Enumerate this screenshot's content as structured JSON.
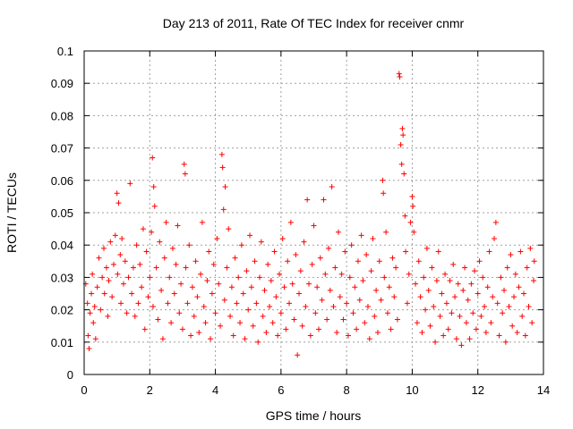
{
  "chart_data": {
    "type": "scatter",
    "title": "Day 213 of 2011, Rate Of TEC Index for receiver cnmr",
    "xlabel": "GPS time / hours",
    "ylabel": "ROTI / TECUs",
    "xlim": [
      0,
      14
    ],
    "ylim": [
      0,
      0.1
    ],
    "x_ticks": [
      0,
      2,
      4,
      6,
      8,
      10,
      12,
      14
    ],
    "x_tick_labels": [
      "0",
      "2",
      "4",
      "6",
      "8",
      "10",
      "12",
      "14"
    ],
    "y_ticks": [
      0,
      0.01,
      0.02,
      0.03,
      0.04,
      0.05,
      0.06,
      0.07,
      0.08,
      0.09,
      0.1
    ],
    "y_tick_labels": [
      "0",
      "0.01",
      "0.02",
      "0.03",
      "0.04",
      "0.05",
      "0.06",
      "0.07",
      "0.08",
      "0.09",
      "0.1"
    ],
    "grid": true,
    "marker": "+",
    "marker_color": "#ff0000",
    "series": [
      {
        "name": "ROTI",
        "points": [
          [
            0.05,
            0.028
          ],
          [
            0.1,
            0.022
          ],
          [
            0.12,
            0.012
          ],
          [
            0.15,
            0.008
          ],
          [
            0.18,
            0.019
          ],
          [
            0.22,
            0.025
          ],
          [
            0.25,
            0.031
          ],
          [
            0.28,
            0.016
          ],
          [
            0.32,
            0.021
          ],
          [
            0.35,
            0.011
          ],
          [
            0.4,
            0.027
          ],
          [
            0.45,
            0.036
          ],
          [
            0.5,
            0.02
          ],
          [
            0.55,
            0.03
          ],
          [
            0.6,
            0.039
          ],
          [
            0.62,
            0.025
          ],
          [
            0.68,
            0.033
          ],
          [
            0.72,
            0.018
          ],
          [
            0.75,
            0.029
          ],
          [
            0.8,
            0.041
          ],
          [
            0.85,
            0.024
          ],
          [
            0.9,
            0.034
          ],
          [
            0.95,
            0.043
          ],
          [
            1.0,
            0.056
          ],
          [
            1.02,
            0.031
          ],
          [
            1.05,
            0.053
          ],
          [
            1.1,
            0.037
          ],
          [
            1.12,
            0.022
          ],
          [
            1.15,
            0.042
          ],
          [
            1.2,
            0.028
          ],
          [
            1.25,
            0.035
          ],
          [
            1.3,
            0.019
          ],
          [
            1.35,
            0.03
          ],
          [
            1.4,
            0.059
          ],
          [
            1.45,
            0.025
          ],
          [
            1.5,
            0.033
          ],
          [
            1.55,
            0.018
          ],
          [
            1.6,
            0.04
          ],
          [
            1.65,
            0.022
          ],
          [
            1.7,
            0.034
          ],
          [
            1.75,
            0.027
          ],
          [
            1.8,
            0.045
          ],
          [
            1.85,
            0.014
          ],
          [
            1.9,
            0.038
          ],
          [
            1.95,
            0.024
          ],
          [
            2.0,
            0.03
          ],
          [
            2.05,
            0.044
          ],
          [
            2.08,
            0.067
          ],
          [
            2.1,
            0.021
          ],
          [
            2.12,
            0.058
          ],
          [
            2.15,
            0.052
          ],
          [
            2.2,
            0.033
          ],
          [
            2.25,
            0.017
          ],
          [
            2.3,
            0.041
          ],
          [
            2.35,
            0.026
          ],
          [
            2.4,
            0.011
          ],
          [
            2.45,
            0.036
          ],
          [
            2.5,
            0.047
          ],
          [
            2.55,
            0.022
          ],
          [
            2.6,
            0.03
          ],
          [
            2.65,
            0.016
          ],
          [
            2.7,
            0.039
          ],
          [
            2.75,
            0.025
          ],
          [
            2.8,
            0.034
          ],
          [
            2.85,
            0.046
          ],
          [
            2.9,
            0.019
          ],
          [
            2.95,
            0.028
          ],
          [
            3.0,
            0.014
          ],
          [
            3.05,
            0.065
          ],
          [
            3.08,
            0.062
          ],
          [
            3.1,
            0.033
          ],
          [
            3.15,
            0.022
          ],
          [
            3.2,
            0.04
          ],
          [
            3.25,
            0.012
          ],
          [
            3.3,
            0.027
          ],
          [
            3.35,
            0.018
          ],
          [
            3.4,
            0.035
          ],
          [
            3.45,
            0.024
          ],
          [
            3.5,
            0.013
          ],
          [
            3.55,
            0.031
          ],
          [
            3.6,
            0.047
          ],
          [
            3.65,
            0.021
          ],
          [
            3.7,
            0.016
          ],
          [
            3.75,
            0.029
          ],
          [
            3.8,
            0.038
          ],
          [
            3.85,
            0.011
          ],
          [
            3.9,
            0.025
          ],
          [
            3.95,
            0.034
          ],
          [
            4.0,
            0.019
          ],
          [
            4.05,
            0.042
          ],
          [
            4.1,
            0.028
          ],
          [
            4.15,
            0.015
          ],
          [
            4.2,
            0.068
          ],
          [
            4.22,
            0.064
          ],
          [
            4.25,
            0.051
          ],
          [
            4.28,
            0.023
          ],
          [
            4.3,
            0.058
          ],
          [
            4.35,
            0.033
          ],
          [
            4.4,
            0.045
          ],
          [
            4.45,
            0.018
          ],
          [
            4.5,
            0.027
          ],
          [
            4.55,
            0.012
          ],
          [
            4.6,
            0.036
          ],
          [
            4.65,
            0.022
          ],
          [
            4.7,
            0.03
          ],
          [
            4.75,
            0.016
          ],
          [
            4.8,
            0.04
          ],
          [
            4.85,
            0.025
          ],
          [
            4.9,
            0.011
          ],
          [
            4.95,
            0.032
          ],
          [
            5.0,
            0.02
          ],
          [
            5.05,
            0.043
          ],
          [
            5.1,
            0.027
          ],
          [
            5.15,
            0.015
          ],
          [
            5.2,
            0.035
          ],
          [
            5.25,
            0.022
          ],
          [
            5.3,
            0.01
          ],
          [
            5.35,
            0.03
          ],
          [
            5.4,
            0.041
          ],
          [
            5.45,
            0.018
          ],
          [
            5.5,
            0.026
          ],
          [
            5.55,
            0.013
          ],
          [
            5.6,
            0.034
          ],
          [
            5.65,
            0.021
          ],
          [
            5.7,
            0.029
          ],
          [
            5.75,
            0.016
          ],
          [
            5.8,
            0.038
          ],
          [
            5.85,
            0.024
          ],
          [
            5.9,
            0.012
          ],
          [
            5.95,
            0.031
          ],
          [
            6.0,
            0.019
          ],
          [
            6.05,
            0.042
          ],
          [
            6.1,
            0.027
          ],
          [
            6.15,
            0.014
          ],
          [
            6.2,
            0.035
          ],
          [
            6.25,
            0.022
          ],
          [
            6.3,
            0.047
          ],
          [
            6.35,
            0.028
          ],
          [
            6.4,
            0.017
          ],
          [
            6.45,
            0.037
          ],
          [
            6.5,
            0.006
          ],
          [
            6.55,
            0.025
          ],
          [
            6.6,
            0.032
          ],
          [
            6.65,
            0.015
          ],
          [
            6.7,
            0.041
          ],
          [
            6.75,
            0.021
          ],
          [
            6.8,
            0.054
          ],
          [
            6.85,
            0.028
          ],
          [
            6.9,
            0.012
          ],
          [
            6.95,
            0.034
          ],
          [
            7.0,
            0.046
          ],
          [
            7.05,
            0.019
          ],
          [
            7.1,
            0.027
          ],
          [
            7.15,
            0.014
          ],
          [
            7.2,
            0.036
          ],
          [
            7.25,
            0.023
          ],
          [
            7.3,
            0.054
          ],
          [
            7.35,
            0.031
          ],
          [
            7.4,
            0.017
          ],
          [
            7.45,
            0.039
          ],
          [
            7.5,
            0.026
          ],
          [
            7.55,
            0.058
          ],
          [
            7.6,
            0.021
          ],
          [
            7.65,
            0.033
          ],
          [
            7.7,
            0.013
          ],
          [
            7.75,
            0.044
          ],
          [
            7.8,
            0.024
          ],
          [
            7.85,
            0.031
          ],
          [
            7.9,
            0.017
          ],
          [
            7.95,
            0.038
          ],
          [
            8.0,
            0.022
          ],
          [
            8.05,
            0.012
          ],
          [
            8.1,
            0.03
          ],
          [
            8.15,
            0.04
          ],
          [
            8.2,
            0.019
          ],
          [
            8.25,
            0.027
          ],
          [
            8.3,
            0.014
          ],
          [
            8.35,
            0.035
          ],
          [
            8.4,
            0.023
          ],
          [
            8.45,
            0.043
          ],
          [
            8.5,
            0.029
          ],
          [
            8.55,
            0.016
          ],
          [
            8.6,
            0.037
          ],
          [
            8.65,
            0.021
          ],
          [
            8.7,
            0.011
          ],
          [
            8.75,
            0.032
          ],
          [
            8.8,
            0.042
          ],
          [
            8.85,
            0.018
          ],
          [
            8.9,
            0.026
          ],
          [
            8.95,
            0.013
          ],
          [
            9.0,
            0.035
          ],
          [
            9.05,
            0.023
          ],
          [
            9.1,
            0.06
          ],
          [
            9.12,
            0.056
          ],
          [
            9.15,
            0.03
          ],
          [
            9.2,
            0.044
          ],
          [
            9.25,
            0.019
          ],
          [
            9.3,
            0.027
          ],
          [
            9.35,
            0.014
          ],
          [
            9.4,
            0.036
          ],
          [
            9.45,
            0.024
          ],
          [
            9.5,
            0.033
          ],
          [
            9.55,
            0.017
          ],
          [
            9.6,
            0.093
          ],
          [
            9.62,
            0.092
          ],
          [
            9.65,
            0.071
          ],
          [
            9.68,
            0.065
          ],
          [
            9.7,
            0.076
          ],
          [
            9.72,
            0.074
          ],
          [
            9.75,
            0.062
          ],
          [
            9.78,
            0.049
          ],
          [
            9.8,
            0.038
          ],
          [
            9.85,
            0.022
          ],
          [
            9.9,
            0.031
          ],
          [
            9.95,
            0.047
          ],
          [
            10.0,
            0.055
          ],
          [
            10.02,
            0.052
          ],
          [
            10.05,
            0.044
          ],
          [
            10.1,
            0.028
          ],
          [
            10.15,
            0.016
          ],
          [
            10.2,
            0.035
          ],
          [
            10.25,
            0.024
          ],
          [
            10.3,
            0.013
          ],
          [
            10.35,
            0.03
          ],
          [
            10.4,
            0.02
          ],
          [
            10.45,
            0.039
          ],
          [
            10.5,
            0.026
          ],
          [
            10.55,
            0.015
          ],
          [
            10.6,
            0.033
          ],
          [
            10.65,
            0.021
          ],
          [
            10.7,
            0.01
          ],
          [
            10.75,
            0.029
          ],
          [
            10.8,
            0.038
          ],
          [
            10.85,
            0.018
          ],
          [
            10.9,
            0.025
          ],
          [
            10.95,
            0.012
          ],
          [
            11.0,
            0.031
          ],
          [
            11.05,
            0.022
          ],
          [
            11.1,
            0.014
          ],
          [
            11.15,
            0.029
          ],
          [
            11.2,
            0.019
          ],
          [
            11.25,
            0.034
          ],
          [
            11.3,
            0.024
          ],
          [
            11.35,
            0.011
          ],
          [
            11.4,
            0.028
          ],
          [
            11.45,
            0.018
          ],
          [
            11.5,
            0.009
          ],
          [
            11.55,
            0.026
          ],
          [
            11.6,
            0.033
          ],
          [
            11.65,
            0.016
          ],
          [
            11.7,
            0.023
          ],
          [
            11.75,
            0.011
          ],
          [
            11.8,
            0.028
          ],
          [
            11.85,
            0.019
          ],
          [
            11.9,
            0.032
          ],
          [
            11.95,
            0.014
          ],
          [
            12.0,
            0.025
          ],
          [
            12.05,
            0.035
          ],
          [
            12.1,
            0.018
          ],
          [
            12.15,
            0.03
          ],
          [
            12.2,
            0.021
          ],
          [
            12.25,
            0.013
          ],
          [
            12.3,
            0.027
          ],
          [
            12.35,
            0.038
          ],
          [
            12.4,
            0.016
          ],
          [
            12.45,
            0.024
          ],
          [
            12.5,
            0.042
          ],
          [
            12.55,
            0.047
          ],
          [
            12.6,
            0.022
          ],
          [
            12.65,
            0.012
          ],
          [
            12.7,
            0.03
          ],
          [
            12.75,
            0.019
          ],
          [
            12.8,
            0.026
          ],
          [
            12.85,
            0.01
          ],
          [
            12.9,
            0.033
          ],
          [
            12.95,
            0.021
          ],
          [
            13.0,
            0.037
          ],
          [
            13.05,
            0.015
          ],
          [
            13.1,
            0.024
          ],
          [
            13.15,
            0.031
          ],
          [
            13.2,
            0.013
          ],
          [
            13.25,
            0.027
          ],
          [
            13.3,
            0.038
          ],
          [
            13.35,
            0.018
          ],
          [
            13.4,
            0.025
          ],
          [
            13.45,
            0.012
          ],
          [
            13.5,
            0.033
          ],
          [
            13.55,
            0.021
          ],
          [
            13.6,
            0.039
          ],
          [
            13.65,
            0.016
          ],
          [
            13.7,
            0.029
          ],
          [
            13.72,
            0.035
          ]
        ]
      }
    ]
  }
}
